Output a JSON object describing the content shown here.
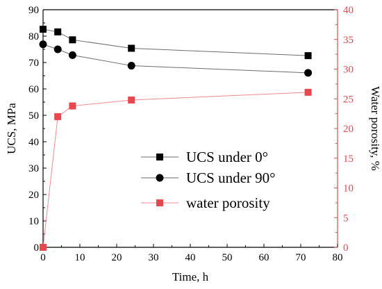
{
  "chart_data": {
    "type": "line",
    "xlabel": "Time, h",
    "ylabel": "UCS, MPa",
    "y2label": "Water porosity, %",
    "xlim": [
      0,
      80
    ],
    "ylim": [
      0,
      90
    ],
    "y2lim": [
      0,
      40
    ],
    "x_ticks": [
      0,
      10,
      20,
      30,
      40,
      50,
      60,
      70,
      80
    ],
    "y_ticks": [
      0,
      10,
      20,
      30,
      40,
      50,
      60,
      70,
      80,
      90
    ],
    "y2_ticks": [
      0,
      5,
      10,
      15,
      20,
      25,
      30,
      35,
      40
    ],
    "grid": false,
    "legend_position": "center-right",
    "series": [
      {
        "name": "UCS under 0°",
        "axis": "left",
        "marker": "square",
        "color": "#000000",
        "line_color": "#6b6b6b",
        "x": [
          0,
          4,
          8,
          24,
          72
        ],
        "y": [
          82.6,
          81.6,
          78.6,
          75.4,
          72.6
        ]
      },
      {
        "name": "UCS under 90°",
        "axis": "left",
        "marker": "circle",
        "color": "#000000",
        "line_color": "#6b6b6b",
        "x": [
          0,
          4,
          8,
          24,
          72
        ],
        "y": [
          76.9,
          75.0,
          72.8,
          68.8,
          66.1
        ]
      },
      {
        "name": "water porosity",
        "axis": "right",
        "marker": "square",
        "color": "#e8474e",
        "line_color": "#f28a8f",
        "x": [
          0,
          4,
          8,
          24,
          72
        ],
        "y": [
          0,
          22.0,
          23.8,
          24.8,
          26.1
        ]
      }
    ]
  },
  "colors": {
    "axis_left": "#000000",
    "axis_right": "#e8474e"
  }
}
